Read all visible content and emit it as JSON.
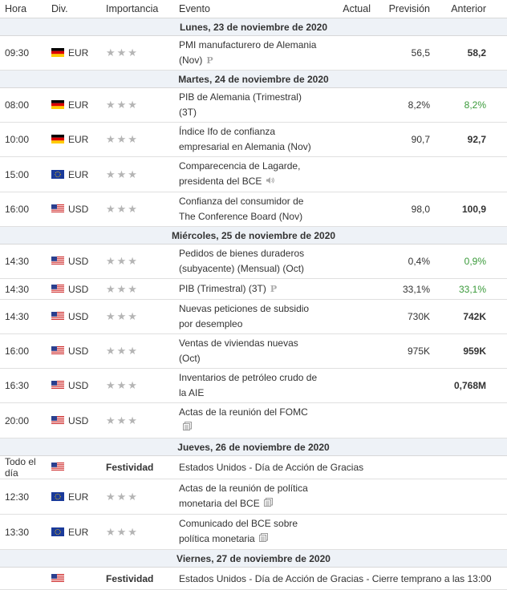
{
  "headers": {
    "hora": "Hora",
    "div": "Div.",
    "importancia": "Importancia",
    "evento": "Evento",
    "actual": "Actual",
    "prevision": "Previsión",
    "anterior": "Anterior"
  },
  "rows": [
    {
      "type": "date",
      "label": "Lunes, 23 de noviembre de 2020"
    },
    {
      "type": "event",
      "time": "09:30",
      "flag": "de",
      "currency": "EUR",
      "event_lines": [
        "PMI manufacturero de Alemania",
        "(Nov)"
      ],
      "icon": "preliminary-icon",
      "actual": "",
      "forecast": "56,5",
      "previous": "58,2",
      "previous_color": "bold"
    },
    {
      "type": "date",
      "label": "Martes, 24 de noviembre de 2020"
    },
    {
      "type": "event",
      "time": "08:00",
      "flag": "de",
      "currency": "EUR",
      "event_lines": [
        "PIB de Alemania (Trimestral)",
        "(3T)"
      ],
      "icon": "",
      "actual": "",
      "forecast": "8,2%",
      "previous": "8,2%",
      "previous_color": "green"
    },
    {
      "type": "event",
      "time": "10:00",
      "flag": "de",
      "currency": "EUR",
      "event_lines": [
        "Índice Ifo de confianza",
        "empresarial en Alemania (Nov)"
      ],
      "icon": "",
      "actual": "",
      "forecast": "90,7",
      "previous": "92,7",
      "previous_color": "bold"
    },
    {
      "type": "event",
      "time": "15:00",
      "flag": "eu",
      "currency": "EUR",
      "event_lines": [
        "Comparecencia de Lagarde,",
        "presidenta del BCE"
      ],
      "icon": "speaker-icon",
      "actual": "",
      "forecast": "",
      "previous": "",
      "previous_color": "bold"
    },
    {
      "type": "event",
      "time": "16:00",
      "flag": "us",
      "currency": "USD",
      "event_lines": [
        "Confianza del consumidor de",
        "The Conference Board (Nov)"
      ],
      "icon": "",
      "actual": "",
      "forecast": "98,0",
      "previous": "100,9",
      "previous_color": "bold"
    },
    {
      "type": "date",
      "label": "Miércoles, 25 de noviembre de 2020"
    },
    {
      "type": "event",
      "time": "14:30",
      "flag": "us",
      "currency": "USD",
      "event_lines": [
        "Pedidos de bienes duraderos",
        "(subyacente) (Mensual) (Oct)"
      ],
      "icon": "",
      "actual": "",
      "forecast": "0,4%",
      "previous": "0,9%",
      "previous_color": "green"
    },
    {
      "type": "event",
      "time": "14:30",
      "flag": "us",
      "currency": "USD",
      "event_lines": [
        "PIB (Trimestral) (3T)"
      ],
      "icon": "preliminary-icon",
      "actual": "",
      "forecast": "33,1%",
      "previous": "33,1%",
      "previous_color": "green"
    },
    {
      "type": "event",
      "time": "14:30",
      "flag": "us",
      "currency": "USD",
      "event_lines": [
        "Nuevas peticiones de subsidio",
        "por desempleo"
      ],
      "icon": "",
      "actual": "",
      "forecast": "730K",
      "previous": "742K",
      "previous_color": "bold"
    },
    {
      "type": "event",
      "time": "16:00",
      "flag": "us",
      "currency": "USD",
      "event_lines": [
        "Ventas de viviendas nuevas",
        "(Oct)"
      ],
      "icon": "",
      "actual": "",
      "forecast": "975K",
      "previous": "959K",
      "previous_color": "bold"
    },
    {
      "type": "event",
      "time": "16:30",
      "flag": "us",
      "currency": "USD",
      "event_lines": [
        "Inventarios de petróleo crudo de",
        "la AIE"
      ],
      "icon": "",
      "actual": "",
      "forecast": "",
      "previous": "0,768M",
      "previous_color": "bold"
    },
    {
      "type": "event",
      "time": "20:00",
      "flag": "us",
      "currency": "USD",
      "event_lines": [
        "Actas de la reunión del FOMC",
        ""
      ],
      "icon": "report-icon",
      "actual": "",
      "forecast": "",
      "previous": "",
      "previous_color": "bold"
    },
    {
      "type": "date",
      "label": "Jueves, 26 de noviembre de 2020"
    },
    {
      "type": "holiday",
      "time": "Todo el día",
      "flag": "us",
      "label": "Festividad",
      "event": "Estados Unidos - Día de Acción de Gracias"
    },
    {
      "type": "event",
      "time": "12:30",
      "flag": "eu",
      "currency": "EUR",
      "event_lines": [
        "Actas de la reunión de política",
        "monetaria del BCE"
      ],
      "icon": "report-icon",
      "actual": "",
      "forecast": "",
      "previous": "",
      "previous_color": "bold"
    },
    {
      "type": "event",
      "time": "13:30",
      "flag": "eu",
      "currency": "EUR",
      "event_lines": [
        "Comunicado del BCE sobre",
        "política monetaria"
      ],
      "icon": "report-icon",
      "actual": "",
      "forecast": "",
      "previous": "",
      "previous_color": "bold"
    },
    {
      "type": "date",
      "label": "Viernes, 27 de noviembre de 2020"
    },
    {
      "type": "holiday",
      "time": "",
      "flag": "us",
      "label": "Festividad",
      "event": "Estados Unidos - Día de Acción de Gracias - Cierre temprano a las 13:00"
    }
  ],
  "colors": {
    "green": "#3a9a3a",
    "date_bg": "#eef2f7",
    "star": "#b5b5b5"
  }
}
